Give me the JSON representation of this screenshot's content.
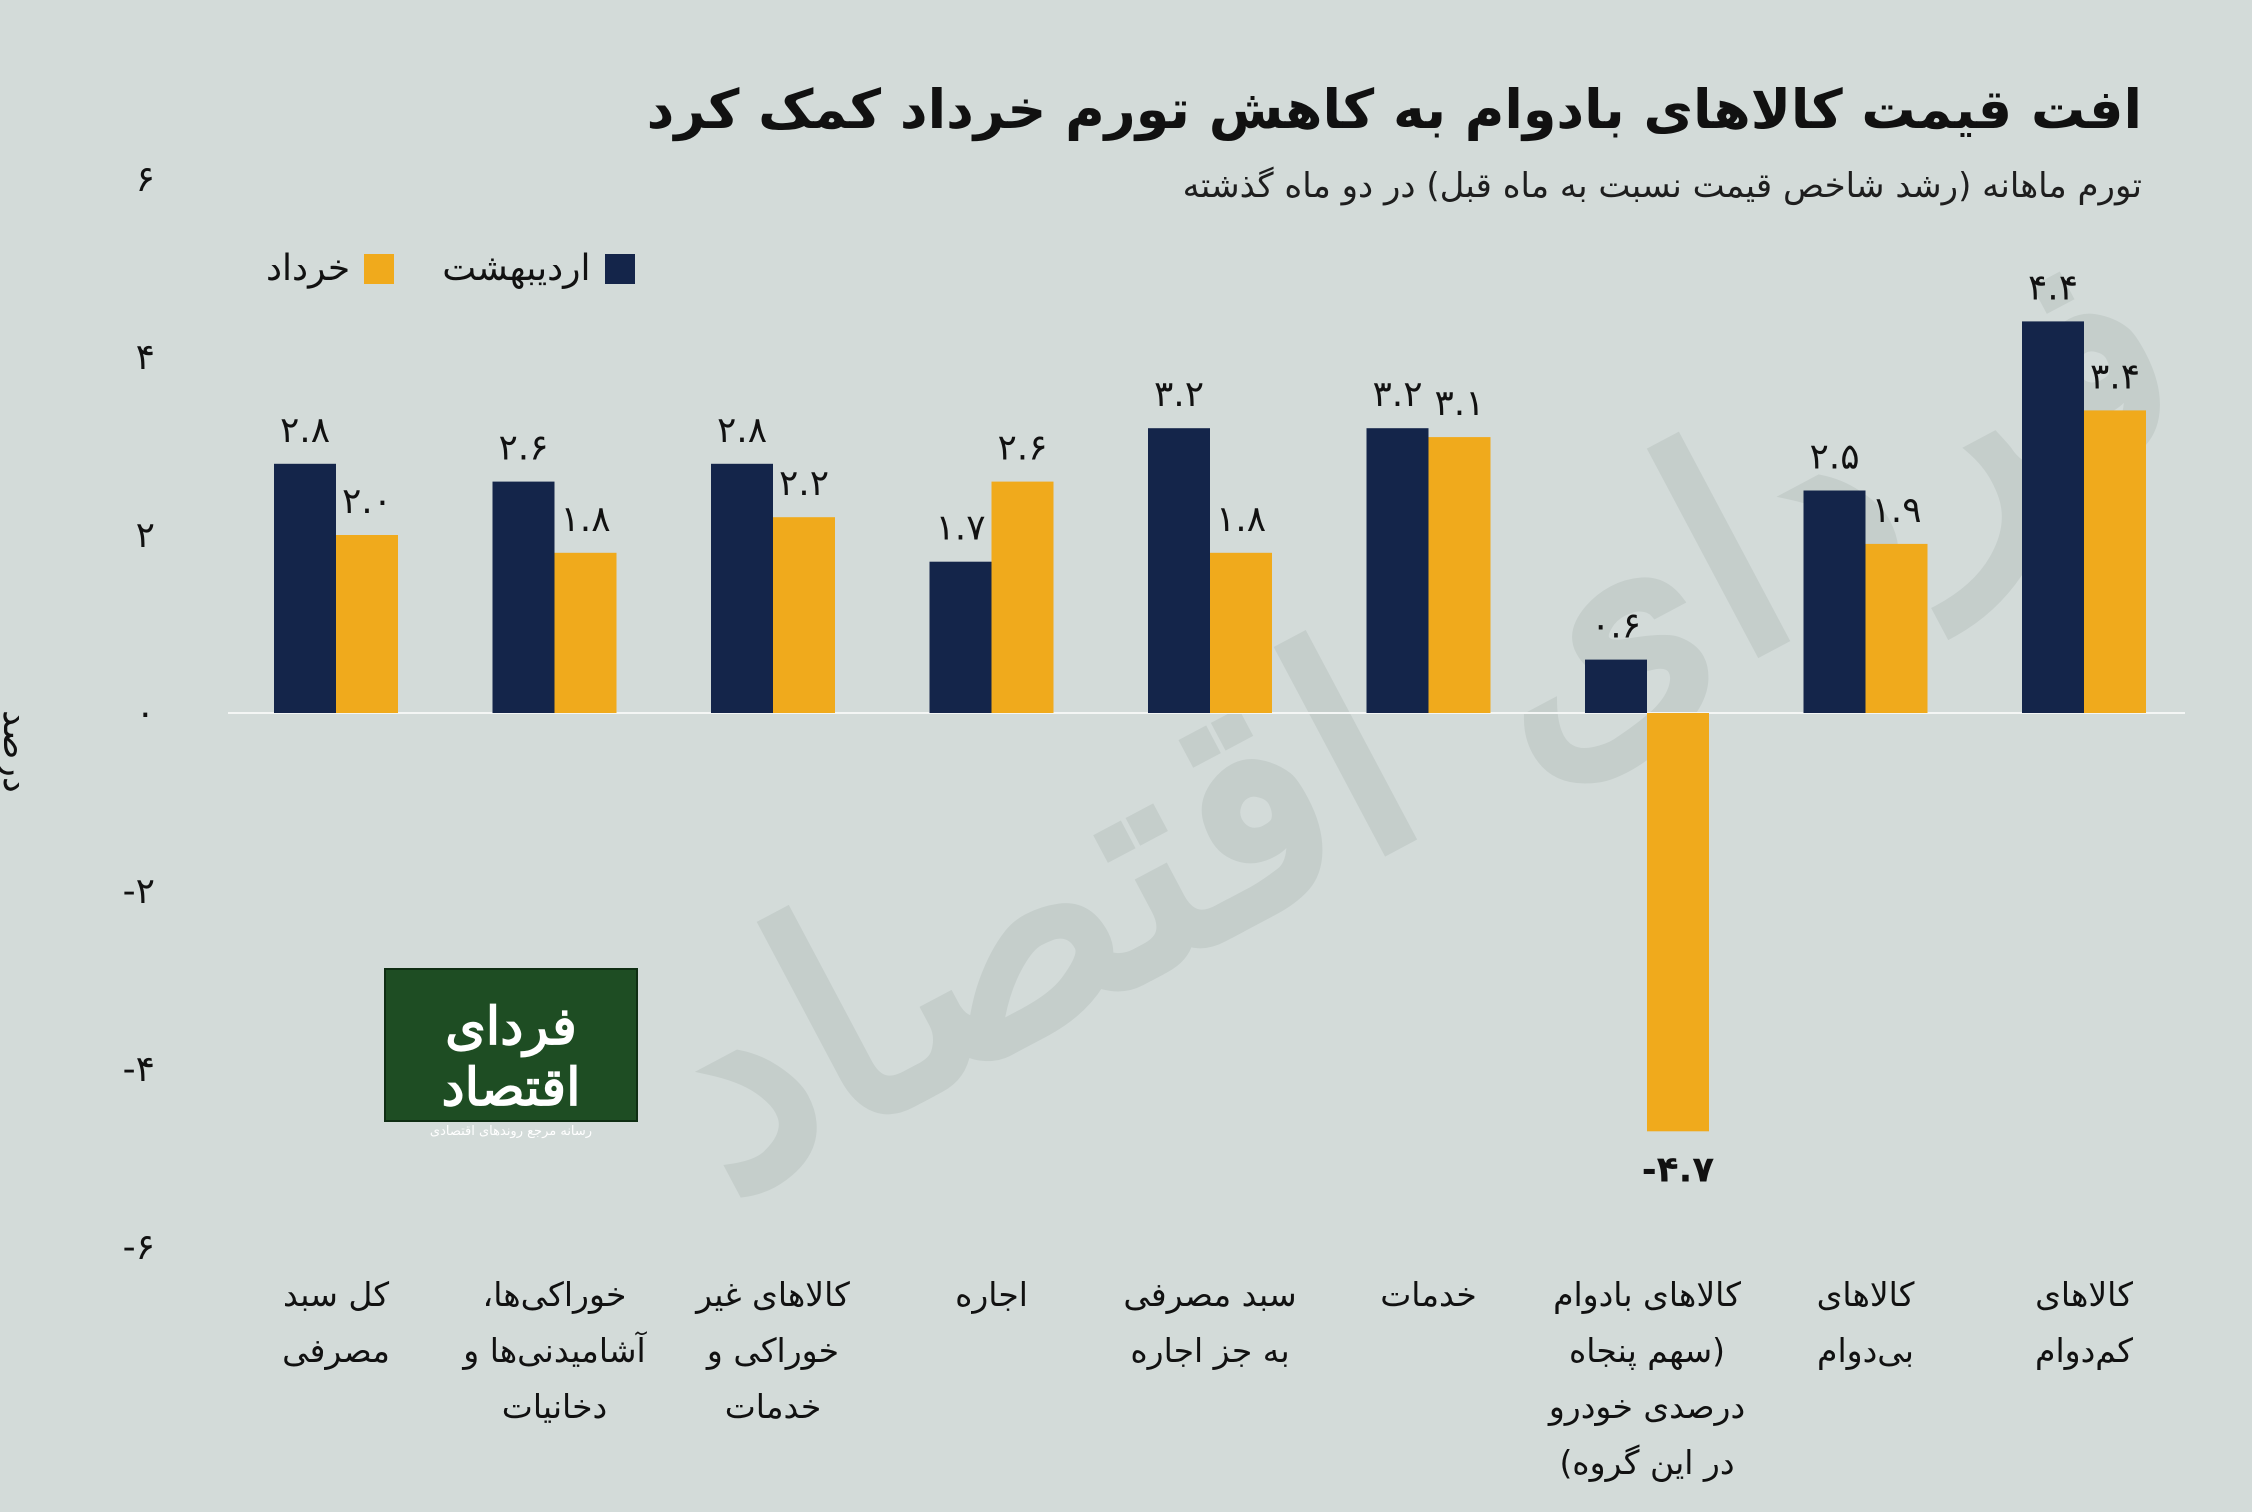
{
  "header": {
    "title": "افت قیمت کالاهای بادوام به کاهش تورم خرداد کمک کرد",
    "subtitle": "تورم ماهانه (رشد شاخص قیمت نسبت به ماه قبل) در دو ماه گذشته"
  },
  "logo": {
    "name": "فردای اقتصاد",
    "tagline": "رسانه مرجع روندهای اقتصادی",
    "watermark": "فردای اقتصاد"
  },
  "colors": {
    "background": "#d3dbd9",
    "ordibehesht": "#14254a",
    "khordad": "#f0aa1c"
  },
  "chart_data": {
    "type": "bar",
    "ylabel": "درصد",
    "ylim": [
      -6,
      6
    ],
    "yticks": [
      6,
      4,
      2,
      0,
      -2,
      -4,
      -6
    ],
    "ytick_labels": [
      "۶",
      "۴",
      "۲",
      "۰",
      "-۲",
      "-۴",
      "-۶"
    ],
    "legend_position": "top-left",
    "grid": false,
    "categories": [
      [
        "کل سبد",
        "مصرفی"
      ],
      [
        "خوراکی‌ها،",
        "آشامیدنی‌ها و",
        "دخانیات"
      ],
      [
        "کالاهای غیر",
        "خوراکی و",
        "خدمات"
      ],
      [
        "اجاره"
      ],
      [
        "سبد مصرفی",
        "به جز اجاره"
      ],
      [
        "خدمات"
      ],
      [
        "کالاهای بادوام",
        "(سهم پنجاه",
        "درصدی خودرو",
        "در این گروه)"
      ],
      [
        "کالاهای",
        "بی‌دوام"
      ],
      [
        "کالاهای",
        "کم‌دوام"
      ]
    ],
    "series": [
      {
        "name": "اردیبهشت",
        "color": "#14254a",
        "values": [
          2.8,
          2.6,
          2.8,
          1.7,
          3.2,
          3.2,
          0.6,
          2.5,
          4.4
        ],
        "labels": [
          "۲.۸",
          "۲.۶",
          "۲.۸",
          "۱.۷",
          "۳.۲",
          "۳.۲",
          "۰.۶",
          "۲.۵",
          "۴.۴"
        ]
      },
      {
        "name": "خرداد",
        "color": "#f0aa1c",
        "values": [
          2.0,
          1.8,
          2.2,
          2.6,
          1.8,
          3.1,
          -4.7,
          1.9,
          3.4
        ],
        "labels": [
          "۲.۰",
          "۱.۸",
          "۲.۲",
          "۲.۶",
          "۱.۸",
          "۳.۱",
          "-۴.۷",
          "۱.۹",
          "۳.۴"
        ]
      }
    ]
  }
}
